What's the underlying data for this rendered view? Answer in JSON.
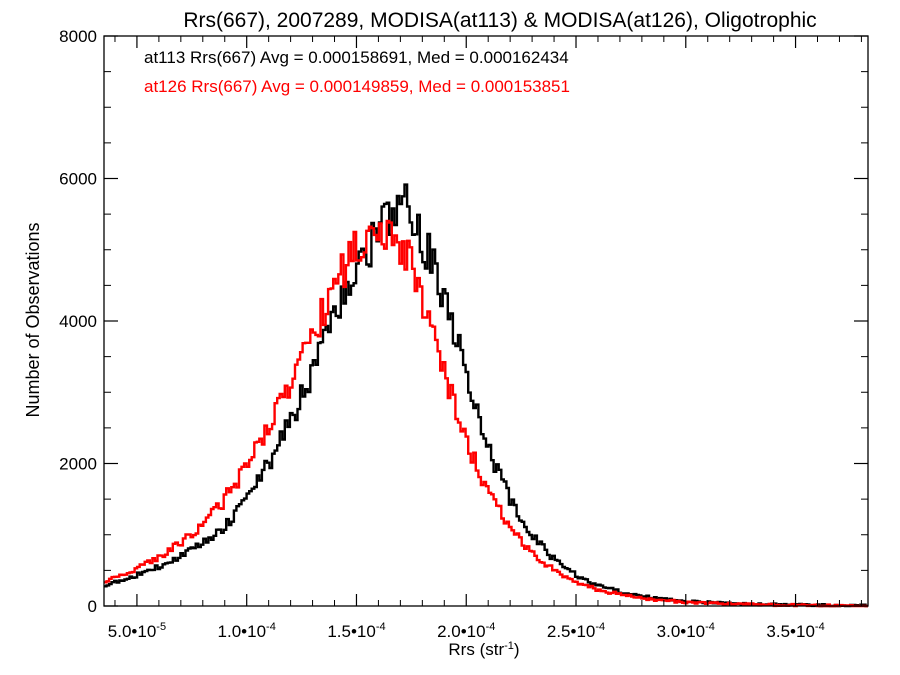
{
  "chart_data": {
    "type": "line",
    "style": "step-histogram",
    "title": "Rrs(667), 2007289, MODISA(at113) & MODISA(at126), Oligotrophic",
    "xlabel_base": "Rrs (str",
    "xlabel_sup": "-1",
    "xlabel_end": ")",
    "ylabel": "Number of Observations",
    "xlim": [
      3.5e-05,
      0.000383
    ],
    "ylim": [
      0,
      8000
    ],
    "x_ticks": [
      {
        "value": 5e-05,
        "mantissa": "5.0•10",
        "exponent": "-5"
      },
      {
        "value": 0.0001,
        "mantissa": "1.0•10",
        "exponent": "-4"
      },
      {
        "value": 0.00015,
        "mantissa": "1.5•10",
        "exponent": "-4"
      },
      {
        "value": 0.0002,
        "mantissa": "2.0•10",
        "exponent": "-4"
      },
      {
        "value": 0.00025,
        "mantissa": "2.5•10",
        "exponent": "-4"
      },
      {
        "value": 0.0003,
        "mantissa": "3.0•10",
        "exponent": "-4"
      },
      {
        "value": 0.00035,
        "mantissa": "3.5•10",
        "exponent": "-4"
      }
    ],
    "y_ticks": [
      {
        "value": 0,
        "label": "0"
      },
      {
        "value": 2000,
        "label": "2000"
      },
      {
        "value": 4000,
        "label": "4000"
      },
      {
        "value": 6000,
        "label": "6000"
      },
      {
        "value": 8000,
        "label": "8000"
      }
    ],
    "x_minor_step": 1e-05,
    "y_minor_step": 500,
    "grid": false,
    "legend_position": "top-left",
    "annotations": [
      {
        "text": "at113 Rrs(667) Avg = 0.000158691, Med = 0.000162434",
        "color": "#000000"
      },
      {
        "text": "at126 Rrs(667) Avg = 0.000149859, Med = 0.000153851",
        "color": "#ff0000"
      }
    ],
    "series": [
      {
        "color": "#000000",
        "x": [
          3.5e-05,
          4e-05,
          5e-05,
          6e-05,
          7e-05,
          8e-05,
          9e-05,
          0.0001,
          0.00011,
          0.00012,
          0.00013,
          0.00014,
          0.000145,
          0.00015,
          0.000155,
          0.00016,
          0.000165,
          0.00017,
          0.000172,
          0.000175,
          0.00018,
          0.000185,
          0.00019,
          0.000195,
          0.0002,
          0.000205,
          0.00021,
          0.00022,
          0.00023,
          0.00024,
          0.00025,
          0.00026,
          0.00027,
          0.00028,
          0.00029,
          0.0003,
          0.00032,
          0.00034,
          0.00036,
          0.00038
        ],
        "y": [
          280,
          330,
          440,
          560,
          700,
          880,
          1100,
          1500,
          2000,
          2600,
          3300,
          4000,
          4400,
          4700,
          5000,
          5250,
          5400,
          5450,
          5700,
          5350,
          5150,
          4800,
          4300,
          3800,
          3250,
          2700,
          2200,
          1500,
          1000,
          650,
          430,
          290,
          200,
          140,
          100,
          70,
          40,
          22,
          12,
          5
        ]
      },
      {
        "color": "#ff0000",
        "x": [
          3.5e-05,
          4e-05,
          5e-05,
          6e-05,
          7e-05,
          8e-05,
          9e-05,
          0.0001,
          0.00011,
          0.00012,
          0.00013,
          0.00014,
          0.00015,
          0.000155,
          0.00016,
          0.000165,
          0.00017,
          0.000175,
          0.00018,
          0.000185,
          0.00019,
          0.000195,
          0.0002,
          0.000205,
          0.00021,
          0.00022,
          0.00023,
          0.00024,
          0.00025,
          0.00026,
          0.00027,
          0.00028,
          0.00029,
          0.0003,
          0.00032,
          0.00034,
          0.00036,
          0.00038
        ],
        "y": [
          330,
          400,
          520,
          680,
          880,
          1130,
          1500,
          1950,
          2500,
          3100,
          3800,
          4500,
          5050,
          5250,
          5350,
          5300,
          5100,
          4750,
          4300,
          3800,
          3300,
          2800,
          2350,
          1950,
          1600,
          1100,
          750,
          500,
          340,
          230,
          160,
          110,
          80,
          55,
          30,
          16,
          8,
          4
        ]
      }
    ]
  }
}
